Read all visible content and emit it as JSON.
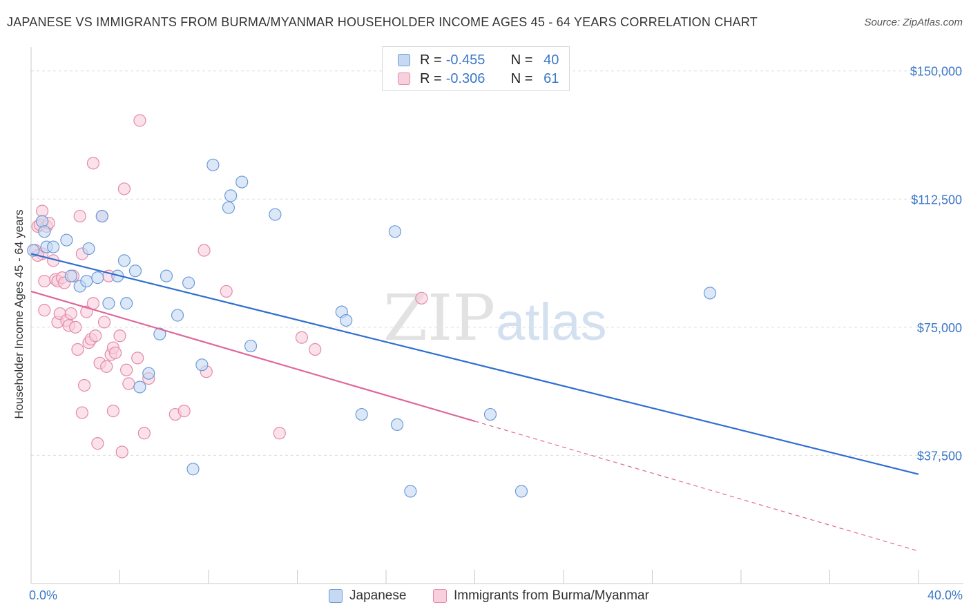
{
  "title": "JAPANESE VS IMMIGRANTS FROM BURMA/MYANMAR HOUSEHOLDER INCOME AGES 45 - 64 YEARS CORRELATION CHART",
  "source": "Source: ZipAtlas.com",
  "watermark": "ZIPatlas",
  "legend": {
    "japanese": {
      "r_label": "R =",
      "r_value": "-0.455",
      "n_label": "N =",
      "n_value": "40"
    },
    "burma": {
      "r_label": "R =",
      "r_value": "-0.306",
      "n_label": "N =",
      "n_value": "61"
    }
  },
  "colors": {
    "japanese_fill": "#c5d9f2",
    "japanese_stroke": "#6b9bd8",
    "japanese_line": "#2f6fcf",
    "burma_fill": "#f8cfdc",
    "burma_stroke": "#e48aa7",
    "burma_line": "#e0679a",
    "axis_text": "#3a77c7",
    "grid": "#dcdcdc"
  },
  "chart_data": {
    "type": "scatter",
    "title": "JAPANESE VS IMMIGRANTS FROM BURMA/MYANMAR HOUSEHOLDER INCOME AGES 45 - 64 YEARS CORRELATION CHART",
    "xlabel": "",
    "ylabel": "Householder Income Ages 45 - 64 years",
    "xlim": [
      0,
      40
    ],
    "ylim": [
      0,
      155000
    ],
    "x_tick_labels": [
      "0.0%",
      "40.0%"
    ],
    "y_ticks": [
      37500,
      75000,
      112500,
      150000
    ],
    "y_tick_labels": [
      "$37,500",
      "$75,000",
      "$112,500",
      "$150,000"
    ],
    "series": [
      {
        "name": "Japanese",
        "r": -0.455,
        "n": 40,
        "trend": {
          "x0": 0,
          "y0": 96500,
          "x1": 40,
          "y1": 32000,
          "solid_until": 40
        },
        "points": [
          [
            0.1,
            97500
          ],
          [
            0.5,
            106000
          ],
          [
            0.6,
            103000
          ],
          [
            0.7,
            98500
          ],
          [
            1.0,
            98500
          ],
          [
            1.6,
            100500
          ],
          [
            1.8,
            90000
          ],
          [
            2.2,
            87000
          ],
          [
            2.5,
            88500
          ],
          [
            2.6,
            98000
          ],
          [
            3.0,
            89500
          ],
          [
            3.2,
            107500
          ],
          [
            3.5,
            82000
          ],
          [
            3.9,
            90000
          ],
          [
            4.2,
            94500
          ],
          [
            4.3,
            82000
          ],
          [
            4.7,
            91500
          ],
          [
            4.9,
            57500
          ],
          [
            5.3,
            61500
          ],
          [
            5.8,
            73000
          ],
          [
            6.1,
            90000
          ],
          [
            6.6,
            78500
          ],
          [
            7.1,
            88000
          ],
          [
            7.3,
            33500
          ],
          [
            7.7,
            64000
          ],
          [
            8.2,
            122500
          ],
          [
            8.9,
            110000
          ],
          [
            9.0,
            113500
          ],
          [
            9.5,
            117500
          ],
          [
            9.9,
            69500
          ],
          [
            11.0,
            108000
          ],
          [
            14.0,
            79500
          ],
          [
            14.2,
            77000
          ],
          [
            14.9,
            49500
          ],
          [
            16.4,
            103000
          ],
          [
            16.5,
            46500
          ],
          [
            17.1,
            27000
          ],
          [
            20.7,
            49500
          ],
          [
            22.1,
            27000
          ],
          [
            30.6,
            85000
          ]
        ]
      },
      {
        "name": "Immigrants from Burma/Myanmar",
        "r": -0.306,
        "n": 61,
        "trend": {
          "x0": 0,
          "y0": 85500,
          "x1": 40,
          "y1": 9500,
          "solid_until": 20
        },
        "points": [
          [
            0.2,
            97500
          ],
          [
            0.3,
            104500
          ],
          [
            0.4,
            105000
          ],
          [
            0.5,
            109000
          ],
          [
            0.5,
            96500
          ],
          [
            0.6,
            88500
          ],
          [
            0.6,
            80000
          ],
          [
            0.7,
            104500
          ],
          [
            0.8,
            105500
          ],
          [
            1.0,
            94500
          ],
          [
            1.1,
            89000
          ],
          [
            1.2,
            88500
          ],
          [
            1.2,
            76500
          ],
          [
            1.3,
            79000
          ],
          [
            1.4,
            89500
          ],
          [
            1.5,
            88000
          ],
          [
            1.6,
            77000
          ],
          [
            1.7,
            75500
          ],
          [
            1.8,
            79000
          ],
          [
            1.9,
            90000
          ],
          [
            2.0,
            75000
          ],
          [
            2.1,
            68500
          ],
          [
            2.2,
            107500
          ],
          [
            2.3,
            50000
          ],
          [
            2.3,
            96500
          ],
          [
            2.4,
            58000
          ],
          [
            2.5,
            79500
          ],
          [
            2.6,
            70500
          ],
          [
            2.7,
            71500
          ],
          [
            2.8,
            82000
          ],
          [
            2.8,
            123000
          ],
          [
            2.9,
            72500
          ],
          [
            3.0,
            41000
          ],
          [
            3.1,
            64500
          ],
          [
            3.2,
            107500
          ],
          [
            3.3,
            76500
          ],
          [
            3.4,
            63500
          ],
          [
            3.5,
            90000
          ],
          [
            3.6,
            67000
          ],
          [
            3.7,
            50500
          ],
          [
            3.7,
            69000
          ],
          [
            3.8,
            67500
          ],
          [
            4.0,
            72500
          ],
          [
            4.1,
            38500
          ],
          [
            4.2,
            115500
          ],
          [
            4.3,
            62500
          ],
          [
            4.4,
            58500
          ],
          [
            4.8,
            66000
          ],
          [
            4.9,
            135500
          ],
          [
            5.1,
            44000
          ],
          [
            5.3,
            60000
          ],
          [
            6.5,
            49500
          ],
          [
            6.9,
            50500
          ],
          [
            7.8,
            97500
          ],
          [
            7.9,
            62000
          ],
          [
            8.8,
            85500
          ],
          [
            11.2,
            44000
          ],
          [
            12.2,
            72000
          ],
          [
            12.8,
            68500
          ],
          [
            17.6,
            83500
          ],
          [
            0.3,
            96000
          ]
        ]
      }
    ]
  },
  "bottom_legend": {
    "japanese": "Japanese",
    "burma": "Immigrants from Burma/Myanmar"
  }
}
